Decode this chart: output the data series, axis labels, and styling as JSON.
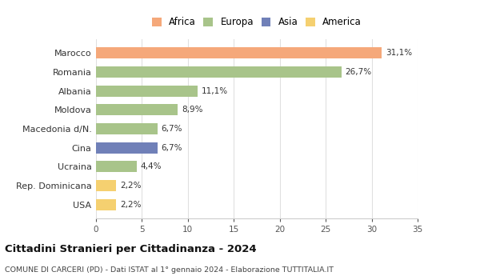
{
  "categories": [
    "Marocco",
    "Romania",
    "Albania",
    "Moldova",
    "Macedonia d/N.",
    "Cina",
    "Ucraina",
    "Rep. Dominicana",
    "USA"
  ],
  "values": [
    31.1,
    26.7,
    11.1,
    8.9,
    6.7,
    6.7,
    4.4,
    2.2,
    2.2
  ],
  "labels": [
    "31,1%",
    "26,7%",
    "11,1%",
    "8,9%",
    "6,7%",
    "6,7%",
    "4,4%",
    "2,2%",
    "2,2%"
  ],
  "colors": [
    "#F5A87A",
    "#A8C48A",
    "#A8C48A",
    "#A8C48A",
    "#A8C48A",
    "#7080B8",
    "#A8C48A",
    "#F5D070",
    "#F5D070"
  ],
  "legend_labels": [
    "Africa",
    "Europa",
    "Asia",
    "America"
  ],
  "legend_colors": [
    "#F5A87A",
    "#A8C48A",
    "#7080B8",
    "#F5D070"
  ],
  "title": "Cittadini Stranieri per Cittadinanza - 2024",
  "subtitle": "COMUNE DI CARCERI (PD) - Dati ISTAT al 1° gennaio 2024 - Elaborazione TUTTITALIA.IT",
  "xlim": [
    0,
    35
  ],
  "xticks": [
    0,
    5,
    10,
    15,
    20,
    25,
    30,
    35
  ],
  "background_color": "#ffffff",
  "plot_bg_color": "#ffffff",
  "grid_color": "#e0e0e0"
}
